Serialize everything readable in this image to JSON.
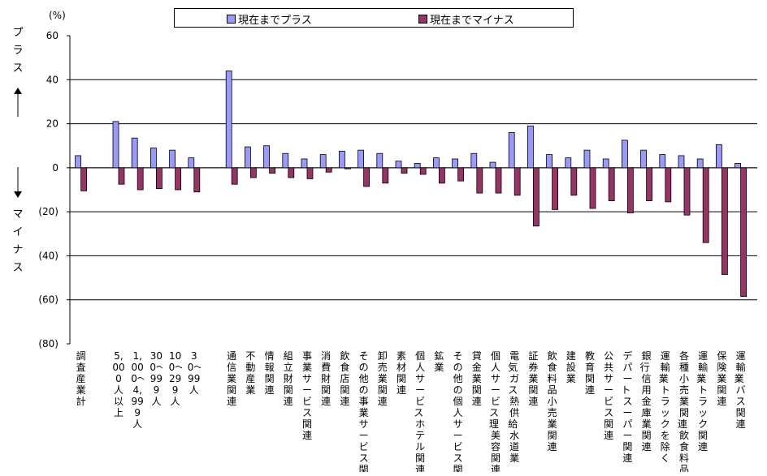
{
  "chart_data": {
    "type": "bar",
    "unit_label": "(%)",
    "y_axis": {
      "ylim": [
        -80,
        60
      ],
      "ticks": [
        60,
        40,
        20,
        0,
        -20,
        -40,
        -60,
        -80
      ],
      "tick_labels": [
        "60",
        "40",
        "20",
        "0",
        "(20)",
        "(40)",
        "(60)",
        "(80)"
      ]
    },
    "grid": true,
    "legend": {
      "position": "top"
    },
    "upper_side_label": "プラス",
    "lower_side_label": "マイナス",
    "categories": [
      "調査産業計",
      "5,000人以上",
      "1,000〜4,999人",
      "300〜999人",
      "100〜299人",
      "30〜99人",
      "通信業関連",
      "不動産業",
      "情報関連",
      "組立財関連",
      "事業サービス関連",
      "消費財関連",
      "飲食店関連",
      "その他の事業サービス関連",
      "卸売業関連",
      "素材関連",
      "個人サービス・ホテル関連",
      "鉱業",
      "その他の個人サービス関連",
      "貸金業関連",
      "個人サービス・理・美容関連",
      "電気・ガス・熱供給・水道業",
      "証券業関連",
      "飲食料品小売業関連",
      "建設業",
      "教育関連",
      "公共サービス関連",
      "デパート・スーパー関連",
      "銀行・信用金庫業関連",
      "運輸業・トラックを除く",
      "各種小売業関連・飲食料品小売業を除く",
      "運輸業・トラック関連",
      "保険業関連",
      "運輸業・バス関連"
    ],
    "series": [
      {
        "name": "現在までプラス",
        "color": "#9999ff",
        "values": [
          5.5,
          21,
          13.5,
          9,
          8,
          4.5,
          44,
          9.5,
          10,
          6.5,
          4,
          6,
          7.5,
          8,
          6.5,
          3,
          2,
          4.5,
          4,
          6.5,
          2.5,
          16,
          19,
          6,
          4.5,
          8,
          4,
          12.5,
          8,
          6,
          5.5,
          4,
          10.5,
          2
        ]
      },
      {
        "name": "現在までマイナス",
        "color": "#993366",
        "values": [
          -10.5,
          -7.5,
          -10,
          -9.5,
          -10,
          -11,
          -7.5,
          -4.5,
          -2.5,
          -4.5,
          -5,
          -2,
          -0.5,
          -8.5,
          -7,
          -2.5,
          -3,
          -7,
          -6,
          -11.5,
          -11.5,
          -12.5,
          -26.5,
          -19,
          -12.5,
          -18.5,
          -15,
          -20.5,
          -15,
          -15.5,
          -21.5,
          -34,
          -48.5,
          -58.5
        ]
      }
    ]
  }
}
